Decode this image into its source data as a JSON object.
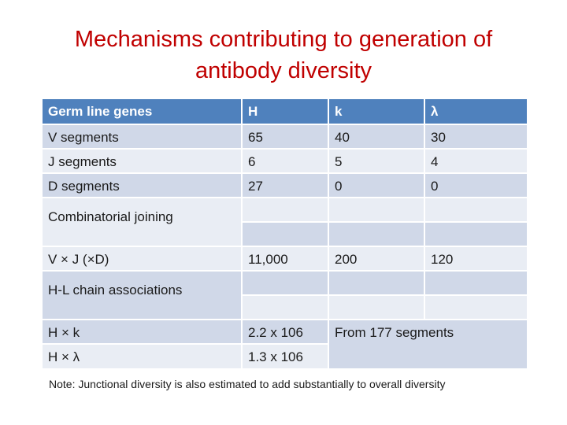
{
  "title": "Mechanisms contributing to generation of antibody diversity",
  "table": {
    "headers": [
      "Germ line genes",
      "H",
      "k",
      "λ"
    ],
    "rows": [
      [
        "V segments",
        "65",
        "40",
        "30"
      ],
      [
        "J segments",
        "6",
        "5",
        "4"
      ],
      [
        "D segments",
        "27",
        "0",
        "0"
      ],
      [
        "",
        "",
        "",
        ""
      ],
      [
        "Combinatorial joining",
        "",
        "",
        ""
      ],
      [
        "V × J  (×D)",
        "11,000",
        "200",
        "120"
      ],
      [
        "",
        "",
        "",
        ""
      ],
      [
        "H-L chain associations",
        "",
        "",
        ""
      ],
      [
        "H × k",
        "2.2 x 106",
        "From 177 segments",
        ""
      ],
      [
        "H × λ",
        "1.3 x 106",
        "",
        ""
      ]
    ]
  },
  "note": "Note: Junctional diversity is also estimated to add substantially to overall diversity"
}
